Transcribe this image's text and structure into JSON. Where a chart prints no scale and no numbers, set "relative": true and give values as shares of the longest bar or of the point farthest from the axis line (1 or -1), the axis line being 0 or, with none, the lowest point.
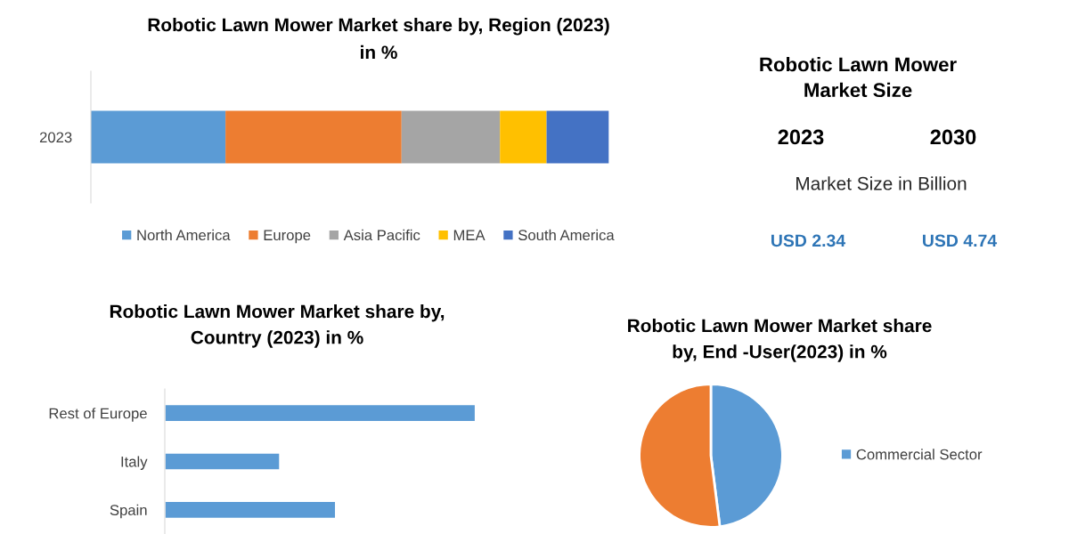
{
  "chart_data": [
    {
      "type": "bar",
      "title": "Robotic Lawn Mower Market share by, Region (2023)\nin %",
      "orientation": "horizontal",
      "stacked": true,
      "relative": true,
      "categories": [
        "2023"
      ],
      "series": [
        {
          "name": "North America",
          "color": "#5b9bd5",
          "values": [
            0.26
          ]
        },
        {
          "name": "Europe",
          "color": "#ed7d31",
          "values": [
            0.34
          ]
        },
        {
          "name": "Asia Pacific",
          "color": "#a5a5a5",
          "values": [
            0.19
          ]
        },
        {
          "name": "MEA",
          "color": "#ffc000",
          "values": [
            0.09
          ]
        },
        {
          "name": "South America",
          "color": "#4472c4",
          "values": [
            0.12
          ]
        }
      ],
      "legend": "bottom"
    },
    {
      "type": "other",
      "title": "Robotic Lawn Mower\nMarket Size",
      "annotations": [
        "2023",
        "2030",
        "Market Size in Billion",
        "USD 2.34",
        "USD 4.74"
      ]
    },
    {
      "type": "bar",
      "title": "Robotic Lawn Mower Market share by,\nCountry (2023) in %",
      "orientation": "horizontal",
      "relative": true,
      "categories": [
        "Rest of Europe",
        "Italy",
        "Spain"
      ],
      "values": [
        1,
        0.37,
        0.55
      ],
      "color": "#5b9bd5"
    },
    {
      "type": "pie",
      "title": "Robotic Lawn Mower Market share\nby, End -User(2023) in %",
      "categories": [
        "Commercial Sector",
        null
      ],
      "values": [
        48,
        52
      ],
      "colors": [
        "#5b9bd5",
        "#ed7d31"
      ],
      "legend": "right"
    }
  ]
}
